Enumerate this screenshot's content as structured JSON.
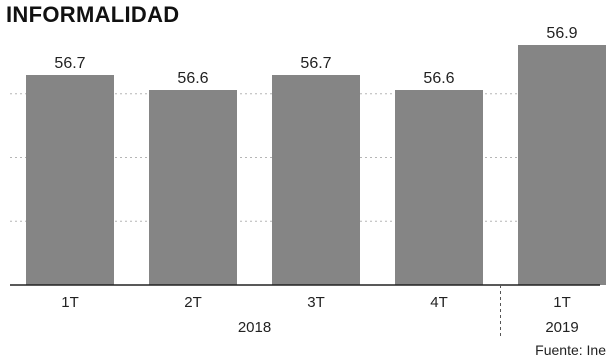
{
  "chart_data": {
    "type": "bar",
    "title": "INFORMALIDAD",
    "categories": [
      "1T",
      "2T",
      "3T",
      "4T",
      "1T"
    ],
    "values": [
      56.7,
      56.6,
      56.7,
      56.6,
      56.9
    ],
    "data_labels": [
      "56.7",
      "56.6",
      "56.7",
      "56.6",
      "56.9"
    ],
    "groups": [
      {
        "label": "2018",
        "categories": [
          0,
          1,
          2,
          3
        ]
      },
      {
        "label": "2019",
        "categories": [
          4
        ]
      }
    ],
    "ylim": [
      55.3,
      57.0
    ],
    "grid": true,
    "source": "Fuente: Ine",
    "bar_color": "#858585"
  }
}
